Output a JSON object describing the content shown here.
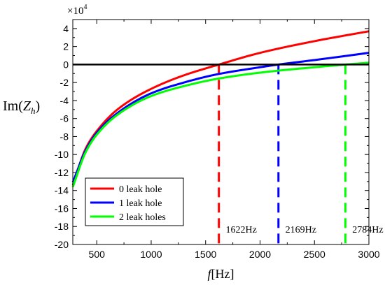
{
  "chart_data": {
    "type": "line",
    "title": "",
    "xlabel_italic": "f",
    "xlabel_unit": "[Hz]",
    "ylabel_prefix": "Im(",
    "ylabel_var": "Z",
    "ylabel_sub": "h",
    "ylabel_suffix": ")",
    "scale_prefix": "×10",
    "scale_exp": "4",
    "xlim": [
      280,
      3000
    ],
    "ylim": [
      -20,
      5
    ],
    "xticks": [
      500,
      1000,
      1500,
      2000,
      2500,
      3000
    ],
    "yticks": [
      4,
      2,
      0,
      -2,
      -4,
      -6,
      -8,
      -10,
      -12,
      -14,
      -16,
      -18,
      -20
    ],
    "grid": false,
    "legend_position": "bottom-left",
    "series": [
      {
        "name": "0 leak hole",
        "color": "#ff0000",
        "x": [
          280,
          400,
          500,
          700,
          1000,
          1300,
          1622,
          2000,
          2500,
          3000
        ],
        "y": [
          -13.4,
          -9.3,
          -7.4,
          -4.9,
          -2.7,
          -1.2,
          0,
          1.3,
          2.6,
          3.7
        ]
      },
      {
        "name": "1 leak hole",
        "color": "#0000ff",
        "x": [
          280,
          400,
          500,
          700,
          1000,
          1300,
          1600,
          2000,
          2169,
          2500,
          3000
        ],
        "y": [
          -13.1,
          -9.5,
          -7.6,
          -5.3,
          -3.2,
          -2.0,
          -1.1,
          -0.3,
          0,
          0.5,
          1.3
        ]
      },
      {
        "name": "2 leak holes",
        "color": "#00ff00",
        "x": [
          280,
          400,
          500,
          700,
          1000,
          1300,
          1600,
          2000,
          2500,
          2784,
          3000
        ],
        "y": [
          -13.6,
          -9.7,
          -7.8,
          -5.5,
          -3.5,
          -2.4,
          -1.6,
          -0.9,
          -0.3,
          0,
          0.2
        ]
      }
    ],
    "markers": [
      {
        "x": 1622,
        "label": "1622Hz",
        "color": "#ff0000"
      },
      {
        "x": 2169,
        "label": "2169Hz",
        "color": "#0000ff"
      },
      {
        "x": 2784,
        "label": "2784Hz",
        "color": "#00ff00"
      }
    ]
  }
}
